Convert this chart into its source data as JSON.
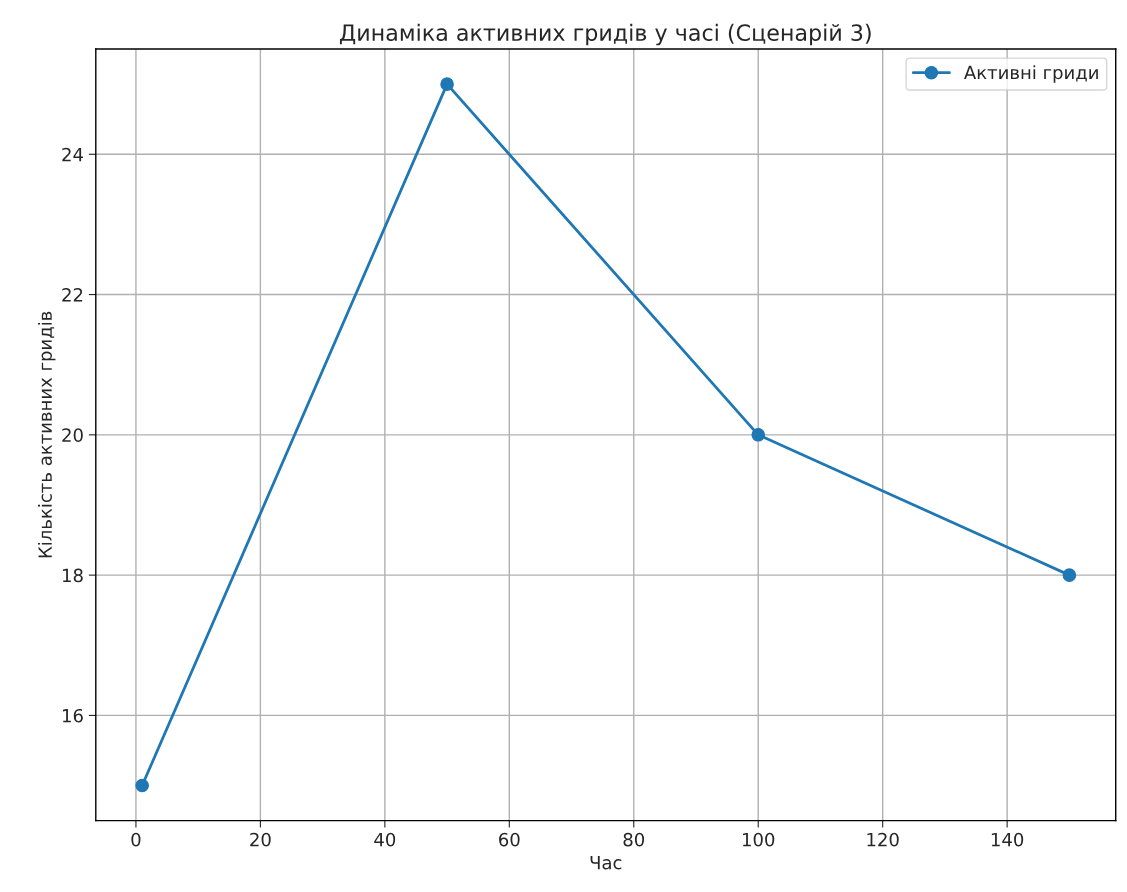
{
  "chart_data": {
    "type": "line",
    "title": "Динаміка активних гридів у часі (Сценарій 3)",
    "xlabel": "Час",
    "ylabel": "Кількість активних гридів",
    "x": [
      1,
      50,
      100,
      150
    ],
    "series": [
      {
        "name": "Активні гриди",
        "color": "#1f77b4",
        "values": [
          15,
          25,
          20,
          18
        ]
      }
    ],
    "xlim": [
      -6.45,
      157.45
    ],
    "xticks": [
      0,
      20,
      40,
      60,
      80,
      100,
      120,
      140
    ],
    "ylim": [
      14.5,
      25.5
    ],
    "yticks": [
      16,
      18,
      20,
      22,
      24
    ],
    "grid": true,
    "legend": "top right",
    "marker": "circle",
    "line_style": "solid"
  }
}
